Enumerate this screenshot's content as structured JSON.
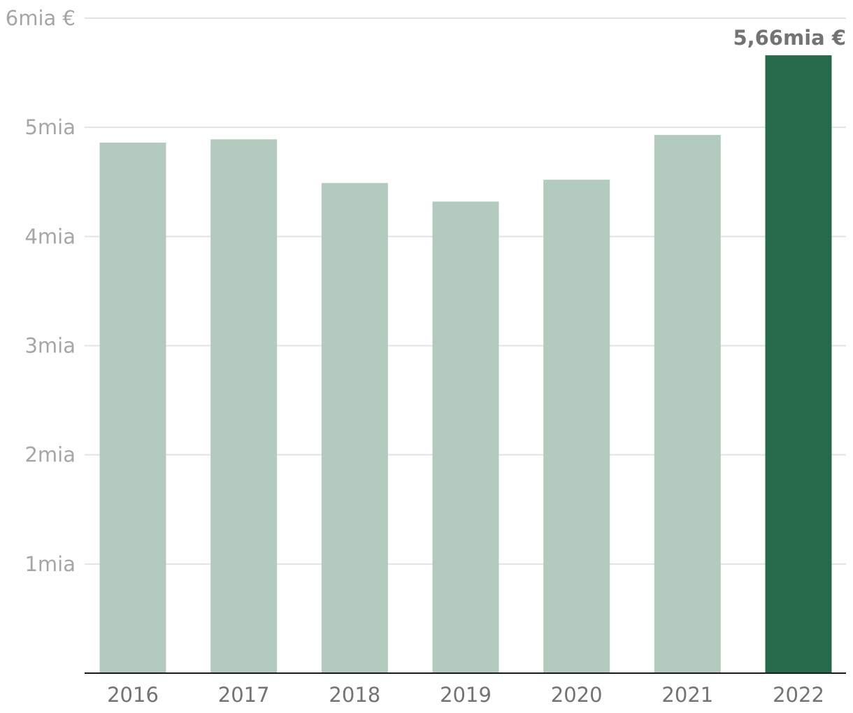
{
  "chart_data": {
    "type": "bar",
    "categories": [
      "2016",
      "2017",
      "2018",
      "2019",
      "2020",
      "2021",
      "2022"
    ],
    "values": [
      4.86,
      4.89,
      4.49,
      4.32,
      4.52,
      4.93,
      5.66
    ],
    "ylim": [
      0,
      6
    ],
    "yticks": [
      {
        "value": 1,
        "label": "1mia"
      },
      {
        "value": 2,
        "label": "2mia"
      },
      {
        "value": 3,
        "label": "3mia"
      },
      {
        "value": 4,
        "label": "4mia"
      },
      {
        "value": 5,
        "label": "5mia"
      },
      {
        "value": 6,
        "label": "6mia €"
      }
    ],
    "highlight_index": 6,
    "highlight_label": "5,66mia €",
    "colors": {
      "bar": "#b3cbbe",
      "highlight": "#246a4b"
    },
    "grid": true,
    "title": "",
    "xlabel": "",
    "ylabel": ""
  }
}
